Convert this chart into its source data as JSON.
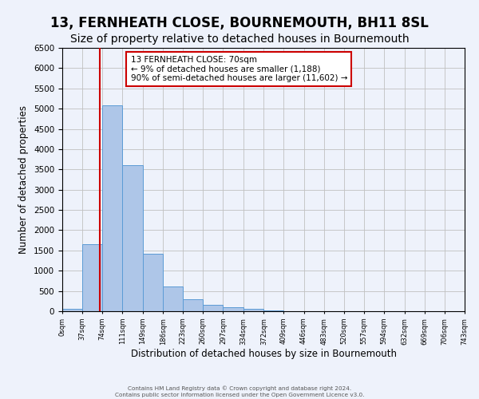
{
  "title": "13, FERNHEATH CLOSE, BOURNEMOUTH, BH11 8SL",
  "subtitle": "Size of property relative to detached houses in Bournemouth",
  "xlabel": "Distribution of detached houses by size in Bournemouth",
  "ylabel": "Number of detached properties",
  "footer_line1": "Contains HM Land Registry data © Crown copyright and database right 2024.",
  "footer_line2": "Contains public sector information licensed under the Open Government Licence v3.0.",
  "annotation_title": "13 FERNHEATH CLOSE: 70sqm",
  "annotation_line2": "← 9% of detached houses are smaller (1,188)",
  "annotation_line3": "90% of semi-detached houses are larger (11,602) →",
  "property_size": 70,
  "bin_edges": [
    0,
    37,
    74,
    111,
    149,
    186,
    223,
    260,
    297,
    334,
    372,
    409,
    446,
    483,
    520,
    557,
    594,
    632,
    669,
    706,
    743
  ],
  "bar_heights": [
    60,
    1650,
    5080,
    3600,
    1420,
    620,
    300,
    150,
    90,
    50,
    10,
    5,
    2,
    0,
    0,
    0,
    0,
    0,
    0,
    0
  ],
  "bar_color": "#aec6e8",
  "bar_edge_color": "#5b9bd5",
  "vline_x": 70,
  "vline_color": "#cc0000",
  "annotation_box_edge_color": "#cc0000",
  "annotation_box_face_color": "#ffffff",
  "ylim": [
    0,
    6500
  ],
  "yticks": [
    0,
    500,
    1000,
    1500,
    2000,
    2500,
    3000,
    3500,
    4000,
    4500,
    5000,
    5500,
    6000,
    6500
  ],
  "grid_color": "#c0c0c0",
  "bg_color": "#eef2fb",
  "title_fontsize": 12,
  "subtitle_fontsize": 10
}
